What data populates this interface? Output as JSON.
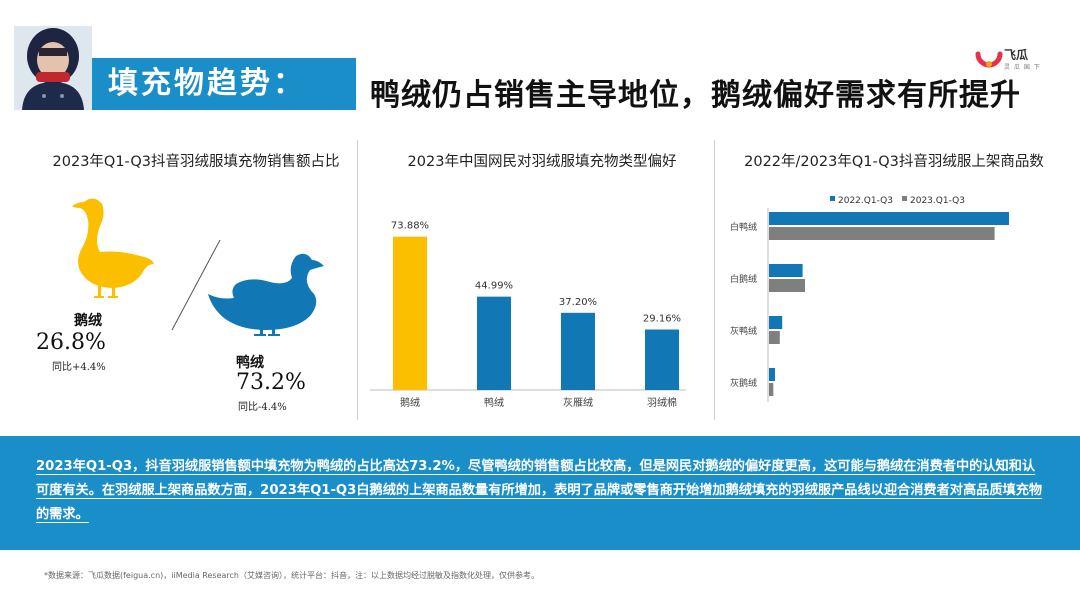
{
  "header": {
    "section_title": "填充物趋势：",
    "headline": "鸭绒仍占销售主导地位，鹅绒偏好需求有所提升",
    "logo_name": "飞瓜",
    "logo_sub": "灵 瓜 国 下"
  },
  "panel1": {
    "title": "2023年Q1-Q3抖音羽绒服填充物销售额占比",
    "goose": {
      "label": "鹅绒",
      "value": "26.8%",
      "yoy": "同比+4.4%"
    },
    "duck": {
      "label": "鸭绒",
      "value": "73.2%",
      "yoy": "同比-4.4%"
    }
  },
  "panel2": {
    "title": "2023年中国网民对羽绒服填充物类型偏好"
  },
  "panel3": {
    "title": "2022年/2023年Q1-Q3抖音羽绒服上架商品数"
  },
  "chart_data": [
    {
      "type": "pie",
      "title": "2023年Q1-Q3抖音羽绒服填充物销售额占比",
      "categories": [
        "鹅绒",
        "鸭绒"
      ],
      "values": [
        26.8,
        73.2
      ],
      "annotations": [
        "同比+4.4%",
        "同比-4.4%"
      ]
    },
    {
      "type": "bar",
      "title": "2023年中国网民对羽绒服填充物类型偏好",
      "categories": [
        "鹅绒",
        "鸭绒",
        "灰雁绒",
        "羽绒棉"
      ],
      "values": [
        73.88,
        44.99,
        37.2,
        29.16
      ],
      "data_labels": [
        "73.88%",
        "44.99%",
        "37.20%",
        "29.16%"
      ],
      "ylim": [
        0,
        80
      ],
      "colors": [
        "#fbbf00",
        "#1277b5",
        "#1277b5",
        "#1277b5"
      ]
    },
    {
      "type": "bar",
      "orientation": "horizontal",
      "title": "2022年/2023年Q1-Q3抖音羽绒服上架商品数",
      "categories": [
        "白鸭绒",
        "白鹅绒",
        "灰鸭绒",
        "灰鹅绒"
      ],
      "series": [
        {
          "name": "2022.Q1-Q3",
          "values": [
            100,
            14,
            5.5,
            2.5
          ],
          "color": "#1277b5"
        },
        {
          "name": "2023.Q1-Q3",
          "values": [
            94,
            15,
            4.5,
            1.8
          ],
          "color": "#7f7f7f"
        }
      ],
      "xlim": [
        0,
        100
      ],
      "legend": "top"
    }
  ],
  "summary": "2023年Q1-Q3，抖音羽绒服销售额中填充物为鸭绒的占比高达73.2%，尽管鸭绒的销售额占比较高，但是网民对鹅绒的偏好度更高，这可能与鹅绒在消费者中的认知和认可度有关。在羽绒服上架商品数方面，2023年Q1-Q3白鹅绒的上架商品数量有所增加，表明了品牌或零售商开始增加鹅绒填充的羽绒服产品线以迎合消费者对高品质填充物的需求。",
  "footnote": "*数据来源：飞瓜数据(feigua.cn)，iiMedia Research（艾媒咨询），统计平台：抖音，注：以上数据均经过脱敏及指数化处理，仅供参考。"
}
